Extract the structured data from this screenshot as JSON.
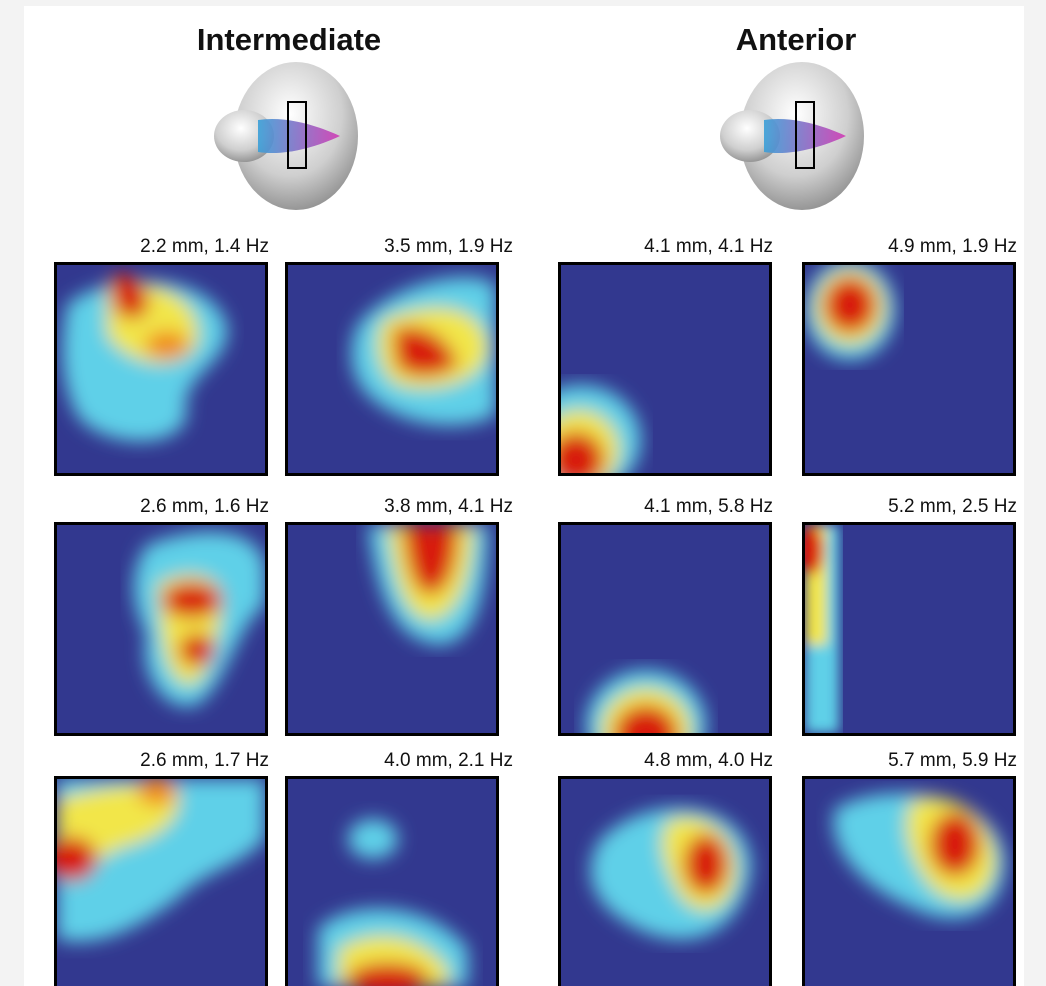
{
  "groups": [
    {
      "title": "Intermediate",
      "panels": [
        {
          "label": "2.2 mm, 1.4 Hz"
        },
        {
          "label": "3.5 mm, 1.9 Hz"
        },
        {
          "label": "2.6 mm, 1.6 Hz"
        },
        {
          "label": "3.8 mm, 4.1 Hz"
        },
        {
          "label": "2.6 mm, 1.7 Hz"
        },
        {
          "label": "4.0 mm, 2.1 Hz"
        }
      ]
    },
    {
      "title": "Anterior",
      "panels": [
        {
          "label": "4.1 mm, 4.1 Hz"
        },
        {
          "label": "4.9 mm, 1.9 Hz"
        },
        {
          "label": "4.1 mm, 5.8 Hz"
        },
        {
          "label": "5.2 mm, 2.5 Hz"
        },
        {
          "label": "4.8 mm, 4.0 Hz"
        },
        {
          "label": "5.7 mm, 5.9 Hz"
        }
      ]
    }
  ],
  "colors": {
    "background": "#32388f",
    "low": "#4a5fb0",
    "cyan": "#5fd0e8",
    "yellow": "#f2e64a",
    "orange": "#f08a1c",
    "red": "#d81a10",
    "darkred": "#7a0a0a"
  }
}
